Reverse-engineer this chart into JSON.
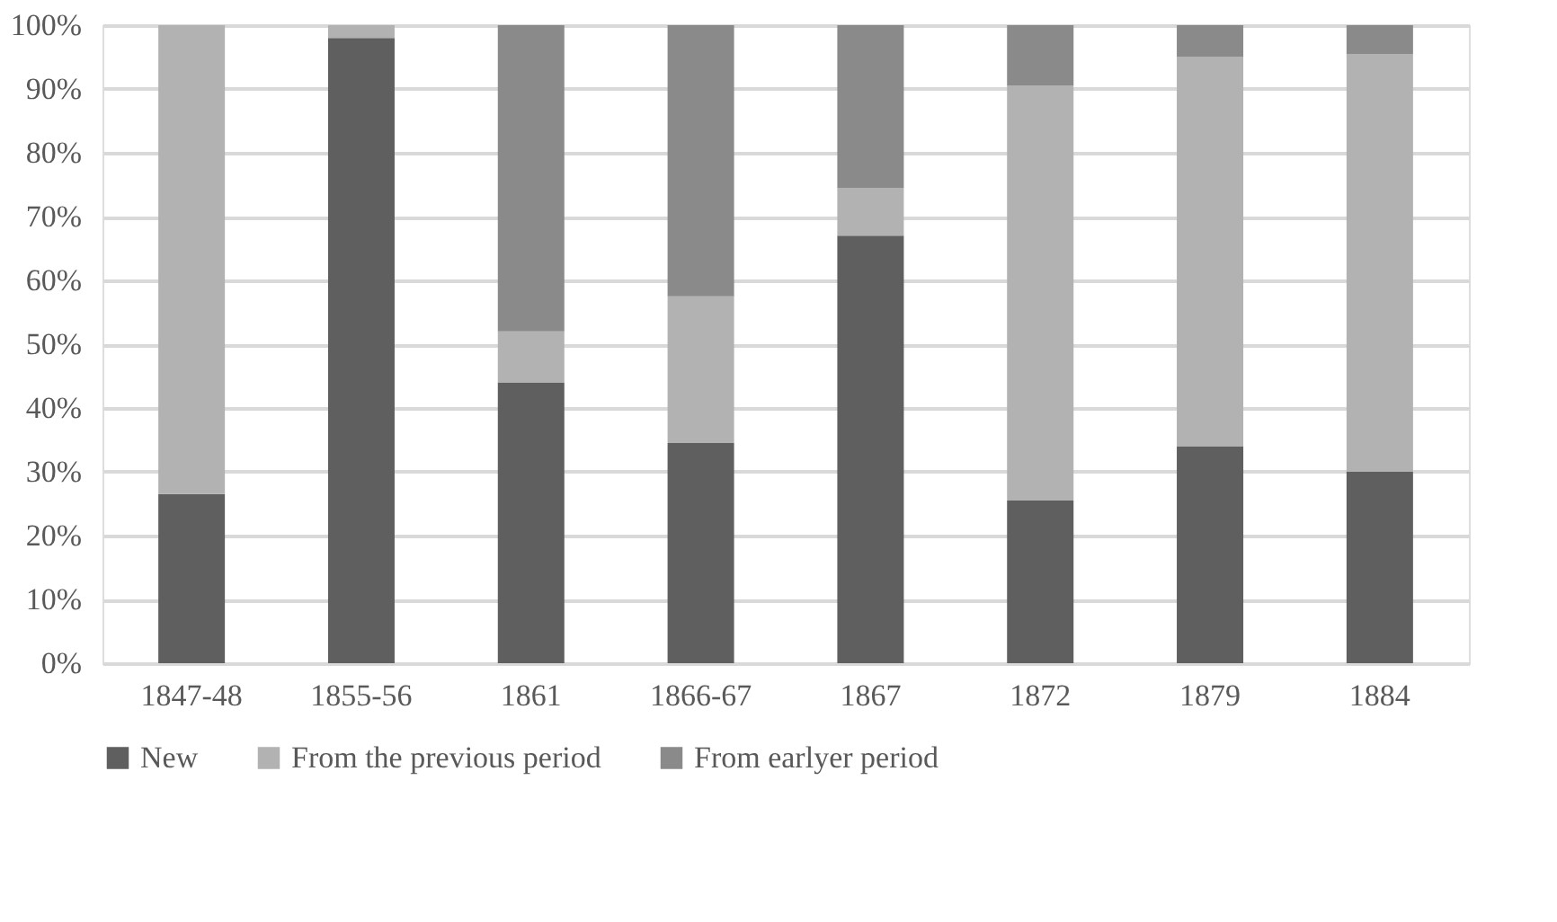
{
  "chart_data": {
    "type": "bar",
    "stacked": true,
    "categories": [
      "1847-48",
      "1855-56",
      "1861",
      "1866-67",
      "1867",
      "1872",
      "1879",
      "1884"
    ],
    "series": [
      {
        "name": "New",
        "color": "#5f5f5f",
        "values": [
          26.5,
          98,
          44,
          34.5,
          67,
          25.5,
          34,
          30
        ]
      },
      {
        "name": "From the previous period",
        "color": "#b2b2b2",
        "values": [
          73.5,
          2,
          8,
          23,
          7.5,
          65,
          61,
          65.5
        ]
      },
      {
        "name": "From earlyer period",
        "color": "#8a8a8a",
        "values": [
          0,
          0,
          48,
          42.5,
          25.5,
          9.5,
          5,
          4.5
        ]
      }
    ],
    "ylim": [
      0,
      100
    ],
    "yticks": [
      {
        "value": 0,
        "label": "0%"
      },
      {
        "value": 10,
        "label": "10%"
      },
      {
        "value": 20,
        "label": "20%"
      },
      {
        "value": 30,
        "label": "30%"
      },
      {
        "value": 40,
        "label": "40%"
      },
      {
        "value": 50,
        "label": "50%"
      },
      {
        "value": 60,
        "label": "60%"
      },
      {
        "value": 70,
        "label": "70%"
      },
      {
        "value": 80,
        "label": "80%"
      },
      {
        "value": 90,
        "label": "90%"
      },
      {
        "value": 100,
        "label": "100%"
      }
    ],
    "grid": "y",
    "legend": "bottom"
  }
}
